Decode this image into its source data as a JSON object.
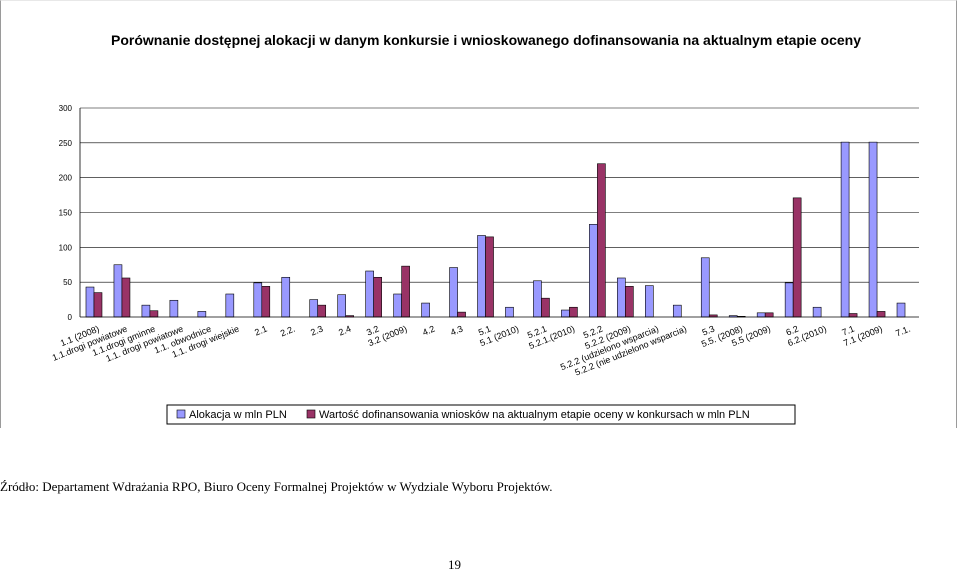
{
  "chart_data": {
    "type": "bar",
    "title": "Porównanie dostępnej alokacji w danym konkursie i wnioskowanego dofinansowania na aktualnym etapie oceny",
    "xlabel": "",
    "ylabel": "",
    "ylim": [
      0,
      300
    ],
    "yticks": [
      0,
      50,
      100,
      150,
      200,
      250,
      300
    ],
    "grid": true,
    "legend_position": "bottom",
    "categories": [
      "1.1 (2008)",
      "1.1.drogi powiatowe",
      "1.1.drogi gminne",
      "1.1. drogi powiatowe",
      "1.1. obwodnice",
      "1.1. drogi wiejskie",
      "2.1",
      "2.2.",
      "2.3",
      "2.4",
      "3.2",
      "3.2 (2009)",
      "4.2",
      "4.3",
      "5.1",
      "5.1 (2010)",
      "5.2.1",
      "5.2.1.(2010)",
      "5.2.2",
      "5.2.2 (2009)",
      "5.2.2 (udzielono wsparcia)",
      "5.2.2 (nie udzielono wsparcia)",
      "5.3",
      "5.5. (2008)",
      "5.5 (2009)",
      "6.2",
      "6.2.(2010)",
      "7.1",
      "7.1 (2009)",
      "7.1."
    ],
    "series": [
      {
        "name": "Alokacja w mln PLN",
        "color": "#9999ff",
        "values": [
          43,
          75,
          17,
          24,
          8,
          33,
          49,
          57,
          25,
          32,
          66,
          33,
          20,
          71,
          117,
          14,
          52,
          10,
          133,
          56,
          45,
          17,
          85,
          2,
          6,
          49,
          14,
          251,
          251,
          20
        ]
      },
      {
        "name": "Wartość dofinansowania wniosków na aktualnym etapie oceny w konkursach w mln PLN",
        "color": "#993366",
        "values": [
          35,
          56,
          9,
          0,
          0,
          0,
          44,
          0,
          17,
          2,
          57,
          73,
          0,
          7,
          115,
          0,
          27,
          14,
          220,
          44,
          0,
          0,
          3,
          1,
          6,
          171,
          0,
          5,
          8,
          0
        ]
      }
    ]
  },
  "source_note": "Źródło: Departament Wdrażania RPO, Biuro Oceny Formalnej Projektów w Wydziale Wyboru Projektów.",
  "page_number": "19"
}
